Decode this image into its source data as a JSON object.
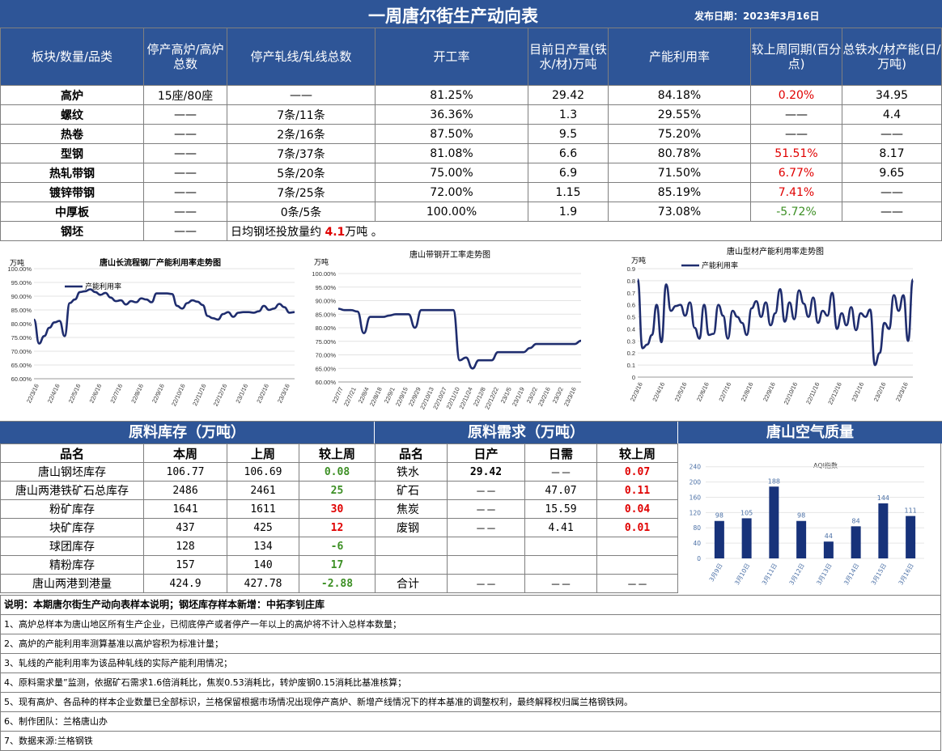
{
  "header": {
    "title": "一周唐尔街生产动向表",
    "date": "发布日期：2023年3月16日"
  },
  "main_table": {
    "headers": [
      "板块/数量/品类",
      "停产高炉/高炉总数",
      "停产轧线/轧线总数",
      "开工率",
      "目前日产量(铁水/材)万吨",
      "产能利用率",
      "较上周同期(百分点)",
      "总铁水/材产能(日/万吨)"
    ],
    "rows": [
      {
        "name": "高炉",
        "furnace": "15座/80座",
        "line": "——",
        "rate": "81.25%",
        "output": "29.42",
        "util": "84.18%",
        "change": "0.20%",
        "cap": "34.95"
      },
      {
        "name": "螺纹",
        "furnace": "——",
        "line": "7条/11条",
        "rate": "36.36%",
        "output": "1.3",
        "util": "29.55%",
        "change": "——",
        "cap": "4.4"
      },
      {
        "name": "热卷",
        "furnace": "——",
        "line": "2条/16条",
        "rate": "87.50%",
        "output": "9.5",
        "util": "75.20%",
        "change": "——",
        "cap": "——"
      },
      {
        "name": "型钢",
        "furnace": "——",
        "line": "7条/37条",
        "rate": "81.08%",
        "output": "6.6",
        "util": "80.78%",
        "change": "51.51%",
        "cap": "8.17"
      },
      {
        "name": "热轧带钢",
        "furnace": "——",
        "line": "5条/20条",
        "rate": "75.00%",
        "output": "6.9",
        "util": "71.50%",
        "change": "6.77%",
        "cap": "9.65"
      },
      {
        "name": "镀锌带钢",
        "furnace": "——",
        "line": "7条/25条",
        "rate": "72.00%",
        "output": "1.15",
        "util": "85.19%",
        "change": "7.41%",
        "cap": "——"
      },
      {
        "name": "中厚板",
        "furnace": "——",
        "line": "0条/5条",
        "rate": "100.00%",
        "output": "1.9",
        "util": "73.08%",
        "change": "-5.72%",
        "cap": "——"
      }
    ],
    "billet": {
      "name": "钢坯",
      "furnace": "——",
      "text_pre": "日均钢坯投放量约 ",
      "value": "4.1",
      "text_post": "万吨 。"
    }
  },
  "chart_data": [
    {
      "type": "line",
      "title": "唐山长流程钢厂产能利用率走势图",
      "unit": "万吨",
      "legend": "产能利用率",
      "legend_position": "top-left",
      "ylim": [
        60,
        100
      ],
      "yticks": [
        "100.00%",
        "95.00%",
        "90.00%",
        "85.00%",
        "80.00%",
        "75.00%",
        "70.00%",
        "65.00%",
        "60.00%"
      ],
      "xticks": [
        "22/3/16",
        "22/4/16",
        "22/5/16",
        "22/6/16",
        "22/7/16",
        "22/8/16",
        "22/9/16",
        "22/10/16",
        "22/11/16",
        "22/12/16",
        "23/1/16",
        "23/2/16",
        "23/3/16"
      ],
      "values": [
        81.5,
        72.8,
        75.5,
        78.5,
        80.5,
        81,
        75.5,
        87.5,
        88.8,
        91.5,
        91.8,
        92.5,
        91.5,
        90.5,
        91.2,
        89.5,
        88.2,
        88.5,
        87,
        88.2,
        87.8,
        89.2,
        88.8,
        87.8,
        91,
        91,
        91,
        90.8,
        86.5,
        85.5,
        87.5,
        88.5,
        88,
        86.8,
        82.8,
        82,
        81.5,
        83.5,
        84.2,
        82.5,
        84,
        84.2,
        84.2,
        84,
        84.5,
        86.5,
        85,
        85.5,
        87.2,
        86,
        84,
        84.2
      ]
    },
    {
      "type": "line",
      "title": "唐山带钢开工率走势图",
      "unit": "万吨",
      "ylim": [
        60,
        100
      ],
      "yticks": [
        "100.00%",
        "95.00%",
        "90.00%",
        "85.00%",
        "80.00%",
        "75.00%",
        "70.00%",
        "65.00%",
        "60.00%"
      ],
      "xticks": [
        "22/7/7",
        "22/7/21",
        "22/8/4",
        "22/8/18",
        "22/9/1",
        "22/9/15",
        "22/9/29",
        "22/10/13",
        "22/10/27",
        "22/11/10",
        "22/11/24",
        "22/12/8",
        "22/12/22",
        "23/1/5",
        "23/1/19",
        "23/2/2",
        "23/2/16",
        "23/3/2",
        "23/3/16"
      ],
      "values": [
        87,
        86.5,
        86.5,
        86,
        78,
        84,
        84,
        84,
        84.5,
        85,
        85,
        85,
        80,
        86.5,
        86.5,
        86.5,
        86.5,
        86.5,
        86.5,
        68,
        69,
        65,
        68,
        68,
        68,
        71,
        71,
        71,
        71,
        71,
        72.5,
        74,
        74,
        74,
        74,
        74,
        74,
        74,
        75.2
      ]
    },
    {
      "type": "line",
      "title": "唐山型材产能利用率走势图",
      "unit": "万吨",
      "legend": "产能利用率",
      "legend_position": "top-left",
      "ylim": [
        0,
        0.9
      ],
      "yticks": [
        "0.9",
        "0.8",
        "0.7",
        "0.6",
        "0.5",
        "0.4",
        "0.3",
        "0.2",
        "0.1",
        "0"
      ],
      "xticks": [
        "22/3/16",
        "22/4/16",
        "22/5/16",
        "22/6/16",
        "22/7/16",
        "22/8/16",
        "22/9/16",
        "22/10/16",
        "22/11/16",
        "22/12/16",
        "23/1/16",
        "23/2/16",
        "23/3/16"
      ],
      "values": [
        0.81,
        0.24,
        0.27,
        0.35,
        0.6,
        0.29,
        0.77,
        0.55,
        0.59,
        0.6,
        0.51,
        0.62,
        0.41,
        0.32,
        0.6,
        0.35,
        0.36,
        0.6,
        0.51,
        0.32,
        0.55,
        0.5,
        0.45,
        0.35,
        0.57,
        0.63,
        0.5,
        0.62,
        0.43,
        0.53,
        0.73,
        0.46,
        0.62,
        0.48,
        0.72,
        0.61,
        0.5,
        0.66,
        0.45,
        0.55,
        0.51,
        0.7,
        0.4,
        0.53,
        0.43,
        0.58,
        0.39,
        0.53,
        0.5,
        0.56,
        0.1,
        0.2,
        0.45,
        0.4,
        0.68,
        0.55,
        0.68,
        0.3,
        0.81
      ]
    },
    {
      "type": "bar",
      "title": "AQI指数",
      "categories": [
        "3月9日",
        "3月10日",
        "3月11日",
        "3月12日",
        "3月13日",
        "3月14日",
        "3月15日",
        "3月16日"
      ],
      "values": [
        98,
        105,
        188,
        98,
        44,
        84,
        144,
        111
      ],
      "ylim": [
        0,
        250
      ],
      "yticks": [
        "0",
        "40",
        "80",
        "120",
        "160",
        "200",
        "240"
      ]
    }
  ],
  "sections": {
    "stock": "原料库存（万吨）",
    "demand": "原料需求（万吨）",
    "air": "唐山空气质量"
  },
  "stock": {
    "headers": [
      "品名",
      "本周",
      "上周",
      "较上周"
    ],
    "rows": [
      {
        "name": "唐山钢坯库存",
        "this": "106.77",
        "last": "106.69",
        "chg": "0.08",
        "color": "#3c8f24"
      },
      {
        "name": "唐山两港铁矿石总库存",
        "this": "2486",
        "last": "2461",
        "chg": "25",
        "color": "#3c8f24"
      },
      {
        "name": "粉矿库存",
        "this": "1641",
        "last": "1611",
        "chg": "30",
        "color": "#e00000"
      },
      {
        "name": "块矿库存",
        "this": "437",
        "last": "425",
        "chg": "12",
        "color": "#e00000"
      },
      {
        "name": "球团库存",
        "this": "128",
        "last": "134",
        "chg": "-6",
        "color": "#3c8f24"
      },
      {
        "name": "精粉库存",
        "this": "157",
        "last": "140",
        "chg": "17",
        "color": "#3c8f24"
      },
      {
        "name": "唐山两港到港量",
        "this": "424.9",
        "last": "427.78",
        "chg": "-2.88",
        "color": "#3c8f24"
      }
    ]
  },
  "demand": {
    "headers": [
      "品名",
      "日产",
      "日需",
      "较上周"
    ],
    "rows": [
      {
        "name": "铁水",
        "prod": "29.42",
        "need": "－－",
        "chg": "0.07"
      },
      {
        "name": "矿石",
        "prod": "－－",
        "need": "47.07",
        "chg": "0.11"
      },
      {
        "name": "焦炭",
        "prod": "－－",
        "need": "15.59",
        "chg": "0.04"
      },
      {
        "name": "废钢",
        "prod": "－－",
        "need": "4.41",
        "chg": "0.01"
      }
    ],
    "total": {
      "name": "合计",
      "prod": "－－",
      "need": "－－",
      "chg": "－－"
    }
  },
  "notes": [
    "说明：本期唐尔街生产动向表样本说明；钢坯库存样本新增：中拓李钊庄库",
    "1、高炉总样本为唐山地区所有生产企业，已彻底停产或者停产一年以上的高炉将不计入总样本数量；",
    "2、高炉的产能利用率测算基准以高炉容积为标准计量；",
    "3、轧线的产能利用率为该品种轧线的实际产能利用情况；",
    "4、原料需求量”监测，依据矿石需求1.6倍消耗比，焦炭0.53消耗比，转炉废钢0.15消耗比基准核算；",
    "5、现有高炉、各品种的样本企业数量已全部标识，兰格保留根据市场情况出现停产高炉、新增产线情况下的样本基准的调整权利，最终解释权归属兰格钢铁网。",
    "6、制作团队：兰格唐山办",
    "7、数据来源:兰格钢铁"
  ],
  "colors": {
    "header_bg": "#2e5597",
    "line": "#1f2d6e",
    "bar": "#17327a",
    "red": "#e00000",
    "green": "#3c8f24"
  }
}
